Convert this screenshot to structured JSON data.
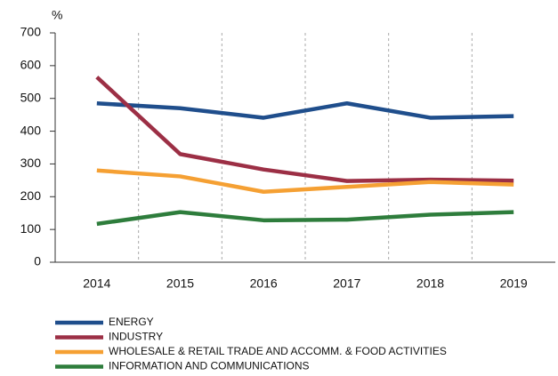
{
  "chart_data": {
    "type": "line",
    "y_label": "%",
    "categories": [
      "2014",
      "2015",
      "2016",
      "2017",
      "2018",
      "2019"
    ],
    "series": [
      {
        "name": "ENERGY",
        "color": "#1f4e8c",
        "values": [
          485,
          470,
          441,
          485,
          441,
          446
        ]
      },
      {
        "name": "INDUSTRY",
        "color": "#9c2f45",
        "values": [
          565,
          330,
          283,
          248,
          252,
          249
        ]
      },
      {
        "name": "WHOLESALE & RETAIL TRADE AND ACCOMM. & FOOD ACTIVITIES",
        "color": "#f5a033",
        "values": [
          280,
          262,
          215,
          230,
          245,
          237
        ]
      },
      {
        "name": "INFORMATION AND COMMUNICATIONS",
        "color": "#2e7d3c",
        "values": [
          117,
          153,
          128,
          130,
          145,
          153
        ]
      }
    ],
    "ylim": [
      0,
      700
    ],
    "yticks": [
      0,
      100,
      200,
      300,
      400,
      500,
      600,
      700
    ],
    "legend": "bottom-left"
  }
}
